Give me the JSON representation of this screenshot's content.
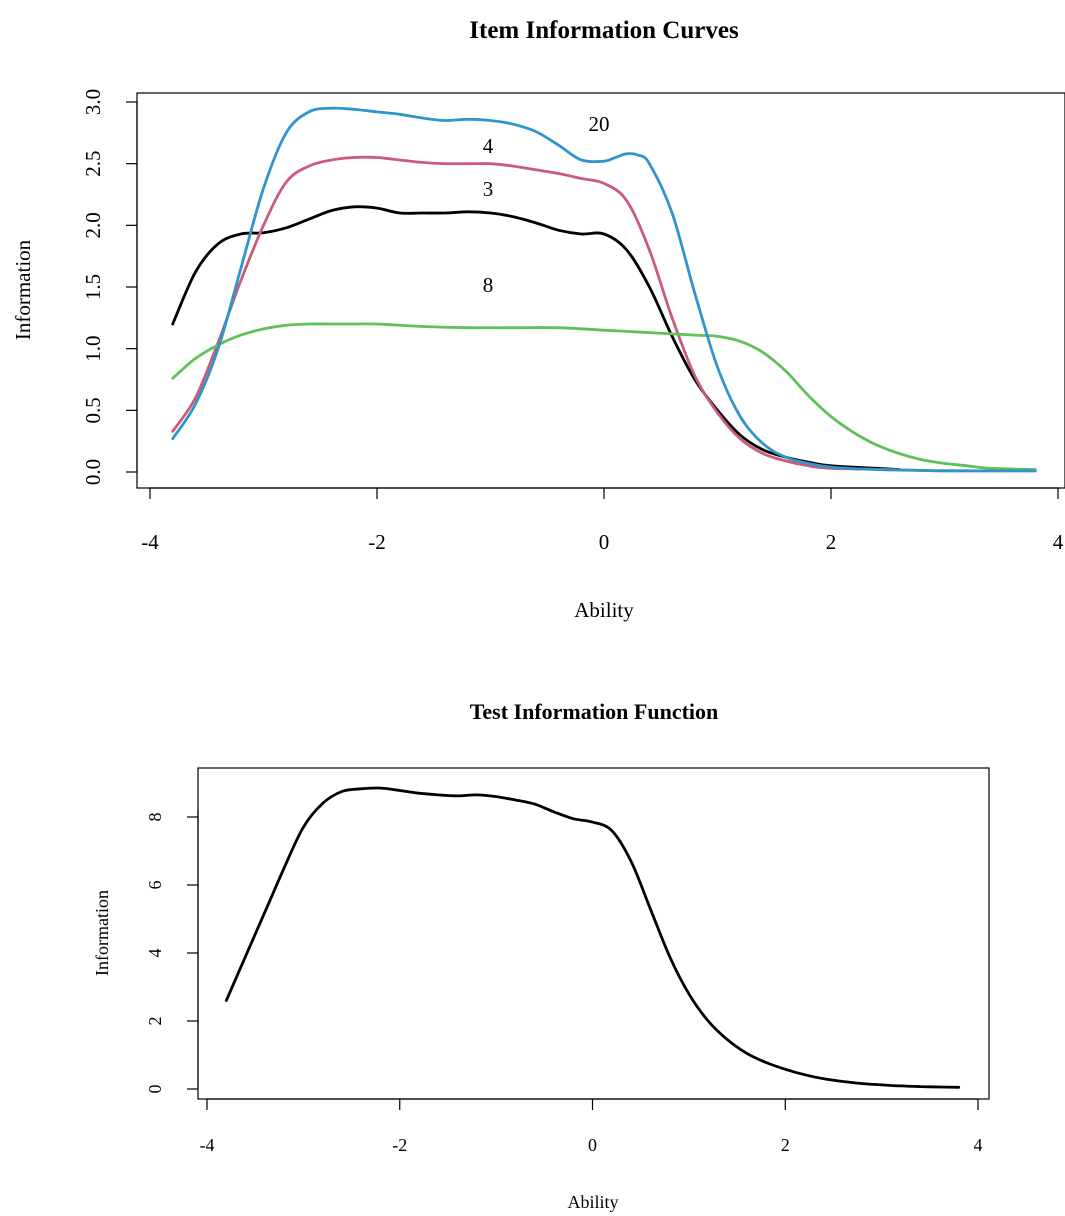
{
  "chart_data": [
    {
      "type": "line",
      "title": "Item Information Curves",
      "xlabel": "Ability",
      "ylabel": "Information",
      "xlim": [
        -4,
        4
      ],
      "ylim": [
        0,
        3
      ],
      "x_ticks": [
        "-4",
        "-2",
        "0",
        "2",
        "4"
      ],
      "y_ticks": [
        "0.0",
        "0.5",
        "1.0",
        "1.5",
        "2.0",
        "2.5",
        "3.0"
      ],
      "grid": false,
      "series": [
        {
          "name": "3",
          "color": "#000000",
          "x": [
            -3.8,
            -3.6,
            -3.4,
            -3.2,
            -3.0,
            -2.8,
            -2.6,
            -2.4,
            -2.2,
            -2.0,
            -1.8,
            -1.6,
            -1.4,
            -1.2,
            -1.0,
            -0.8,
            -0.6,
            -0.4,
            -0.2,
            0.0,
            0.2,
            0.4,
            0.6,
            0.8,
            1.0,
            1.2,
            1.4,
            1.6,
            1.8,
            2.0,
            2.4,
            2.6
          ],
          "y": [
            1.2,
            1.62,
            1.85,
            1.93,
            1.94,
            1.98,
            2.05,
            2.12,
            2.15,
            2.14,
            2.1,
            2.1,
            2.1,
            2.11,
            2.1,
            2.07,
            2.02,
            1.96,
            1.93,
            1.93,
            1.8,
            1.5,
            1.1,
            0.75,
            0.5,
            0.3,
            0.18,
            0.12,
            0.08,
            0.05,
            0.03,
            0.02
          ]
        },
        {
          "name": "4",
          "color": "#c95c78",
          "x": [
            -3.8,
            -3.6,
            -3.4,
            -3.2,
            -3.0,
            -2.8,
            -2.6,
            -2.4,
            -2.2,
            -2.0,
            -1.8,
            -1.6,
            -1.4,
            -1.2,
            -1.0,
            -0.8,
            -0.6,
            -0.4,
            -0.2,
            0.0,
            0.2,
            0.4,
            0.6,
            0.8,
            1.0,
            1.2,
            1.4,
            1.6,
            1.8,
            2.0,
            2.5,
            3.0,
            3.8
          ],
          "y": [
            0.33,
            0.6,
            1.05,
            1.55,
            2.0,
            2.35,
            2.48,
            2.53,
            2.55,
            2.55,
            2.53,
            2.51,
            2.5,
            2.5,
            2.5,
            2.48,
            2.45,
            2.42,
            2.38,
            2.34,
            2.2,
            1.8,
            1.25,
            0.78,
            0.48,
            0.27,
            0.15,
            0.09,
            0.05,
            0.03,
            0.02,
            0.01,
            0.01
          ]
        },
        {
          "name": "8",
          "color": "#61c05a",
          "x": [
            -3.8,
            -3.6,
            -3.4,
            -3.2,
            -3.0,
            -2.8,
            -2.6,
            -2.4,
            -2.2,
            -2.0,
            -1.6,
            -1.2,
            -0.8,
            -0.4,
            0.0,
            0.4,
            0.8,
            1.0,
            1.2,
            1.4,
            1.6,
            1.8,
            2.0,
            2.2,
            2.4,
            2.6,
            2.8,
            3.0,
            3.2,
            3.4,
            3.8
          ],
          "y": [
            0.76,
            0.92,
            1.03,
            1.11,
            1.16,
            1.19,
            1.2,
            1.2,
            1.2,
            1.2,
            1.18,
            1.17,
            1.17,
            1.17,
            1.15,
            1.13,
            1.11,
            1.1,
            1.06,
            0.97,
            0.82,
            0.62,
            0.45,
            0.32,
            0.22,
            0.15,
            0.1,
            0.07,
            0.05,
            0.03,
            0.02
          ]
        },
        {
          "name": "20",
          "color": "#2f95cc",
          "x": [
            -3.8,
            -3.6,
            -3.4,
            -3.2,
            -3.0,
            -2.8,
            -2.6,
            -2.4,
            -2.2,
            -2.0,
            -1.8,
            -1.6,
            -1.4,
            -1.2,
            -1.0,
            -0.8,
            -0.6,
            -0.4,
            -0.2,
            0.0,
            0.1,
            0.2,
            0.3,
            0.4,
            0.6,
            0.8,
            1.0,
            1.2,
            1.4,
            1.6,
            1.8,
            2.0,
            2.4,
            3.0,
            3.8
          ],
          "y": [
            0.27,
            0.55,
            1.0,
            1.65,
            2.3,
            2.75,
            2.92,
            2.95,
            2.94,
            2.92,
            2.9,
            2.87,
            2.85,
            2.86,
            2.85,
            2.82,
            2.76,
            2.65,
            2.53,
            2.52,
            2.55,
            2.58,
            2.57,
            2.5,
            2.1,
            1.45,
            0.85,
            0.45,
            0.23,
            0.12,
            0.07,
            0.04,
            0.02,
            0.01,
            0.01
          ]
        }
      ],
      "annotations": [
        {
          "text": "20",
          "x": -0.05,
          "y": 2.8
        },
        {
          "text": "4",
          "x": -1.0,
          "y": 2.62
        },
        {
          "text": "3",
          "x": -1.0,
          "y": 2.27
        },
        {
          "text": "8",
          "x": -1.0,
          "y": 1.52
        }
      ]
    },
    {
      "type": "line",
      "title": "Test Information Function",
      "xlabel": "Ability",
      "ylabel": "Information",
      "xlim": [
        -4,
        4
      ],
      "ylim": [
        0,
        9
      ],
      "x_ticks": [
        "-4",
        "-2",
        "0",
        "2",
        "4"
      ],
      "y_ticks": [
        "0",
        "2",
        "4",
        "6",
        "8"
      ],
      "grid": false,
      "series": [
        {
          "color": "#000000",
          "x": [
            -3.8,
            -3.6,
            -3.4,
            -3.2,
            -3.0,
            -2.8,
            -2.6,
            -2.4,
            -2.2,
            -2.0,
            -1.8,
            -1.6,
            -1.4,
            -1.2,
            -1.0,
            -0.8,
            -0.6,
            -0.4,
            -0.2,
            0.0,
            0.2,
            0.4,
            0.6,
            0.8,
            1.0,
            1.2,
            1.4,
            1.6,
            1.8,
            2.0,
            2.2,
            2.4,
            2.6,
            2.8,
            3.0,
            3.2,
            3.4,
            3.6,
            3.8
          ],
          "y": [
            2.6,
            3.9,
            5.2,
            6.5,
            7.7,
            8.4,
            8.75,
            8.83,
            8.85,
            8.78,
            8.7,
            8.65,
            8.62,
            8.65,
            8.6,
            8.5,
            8.38,
            8.15,
            7.95,
            7.85,
            7.6,
            6.7,
            5.3,
            3.9,
            2.8,
            2.0,
            1.45,
            1.05,
            0.78,
            0.58,
            0.42,
            0.3,
            0.22,
            0.16,
            0.12,
            0.09,
            0.07,
            0.06,
            0.05
          ]
        }
      ]
    }
  ]
}
